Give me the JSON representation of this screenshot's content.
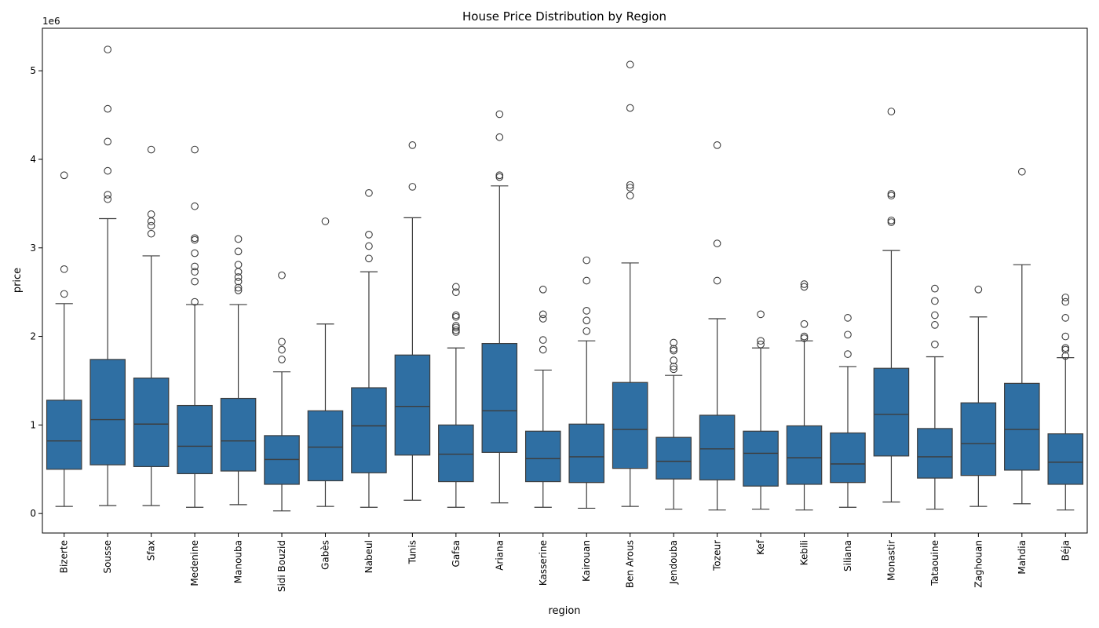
{
  "chart_data": {
    "type": "boxplot",
    "title": "House Price Distribution by Region",
    "xlabel": "region",
    "ylabel": "price",
    "y_scale_label": "1e6",
    "ylim": [
      -220000,
      5480000
    ],
    "yticks": [
      0,
      1000000,
      2000000,
      3000000,
      4000000,
      5000000
    ],
    "ytick_labels": [
      "0",
      "1",
      "2",
      "3",
      "4",
      "5"
    ],
    "grid": false,
    "box_color": "#2f6fa3",
    "line_color": "#3d3d3d",
    "series": [
      {
        "region": "Bizerte",
        "whisker_low": 80000,
        "q1": 500000,
        "median": 820000,
        "q3": 1280000,
        "whisker_high": 2370000,
        "outliers": [
          2480000,
          2760000,
          3820000
        ]
      },
      {
        "region": "Sousse",
        "whisker_low": 90000,
        "q1": 550000,
        "median": 1060000,
        "q3": 1740000,
        "whisker_high": 3330000,
        "outliers": [
          3550000,
          3600000,
          3870000,
          4200000,
          4570000,
          5240000
        ]
      },
      {
        "region": "Sfax",
        "whisker_low": 90000,
        "q1": 530000,
        "median": 1010000,
        "q3": 1530000,
        "whisker_high": 2910000,
        "outliers": [
          3160000,
          3250000,
          3300000,
          3380000,
          4110000
        ]
      },
      {
        "region": "Medenine",
        "whisker_low": 70000,
        "q1": 450000,
        "median": 760000,
        "q3": 1220000,
        "whisker_high": 2360000,
        "outliers": [
          2390000,
          2620000,
          2730000,
          2790000,
          2940000,
          3090000,
          3110000,
          3470000,
          4110000
        ]
      },
      {
        "region": "Manouba",
        "whisker_low": 100000,
        "q1": 480000,
        "median": 820000,
        "q3": 1300000,
        "whisker_high": 2360000,
        "outliers": [
          2520000,
          2550000,
          2620000,
          2670000,
          2730000,
          2810000,
          2960000,
          3100000
        ]
      },
      {
        "region": "Sidi Bouzid",
        "whisker_low": 30000,
        "q1": 330000,
        "median": 610000,
        "q3": 880000,
        "whisker_high": 1600000,
        "outliers": [
          1740000,
          1850000,
          1940000,
          2690000
        ]
      },
      {
        "region": "Gabès",
        "whisker_low": 80000,
        "q1": 370000,
        "median": 750000,
        "q3": 1160000,
        "whisker_high": 2140000,
        "outliers": [
          3300000
        ]
      },
      {
        "region": "Nabeul",
        "whisker_low": 70000,
        "q1": 460000,
        "median": 990000,
        "q3": 1420000,
        "whisker_high": 2730000,
        "outliers": [
          2880000,
          3020000,
          3150000,
          3620000
        ]
      },
      {
        "region": "Tunis",
        "whisker_low": 150000,
        "q1": 660000,
        "median": 1210000,
        "q3": 1790000,
        "whisker_high": 3340000,
        "outliers": [
          3690000,
          4160000
        ]
      },
      {
        "region": "Gafsa",
        "whisker_low": 70000,
        "q1": 360000,
        "median": 670000,
        "q3": 1000000,
        "whisker_high": 1870000,
        "outliers": [
          2050000,
          2070000,
          2100000,
          2120000,
          2220000,
          2240000,
          2500000,
          2560000
        ]
      },
      {
        "region": "Ariana",
        "whisker_low": 120000,
        "q1": 690000,
        "median": 1160000,
        "q3": 1920000,
        "whisker_high": 3700000,
        "outliers": [
          3800000,
          3820000,
          4250000,
          4510000
        ]
      },
      {
        "region": "Kasserine",
        "whisker_low": 70000,
        "q1": 360000,
        "median": 620000,
        "q3": 930000,
        "whisker_high": 1620000,
        "outliers": [
          1850000,
          1960000,
          2200000,
          2250000,
          2530000
        ]
      },
      {
        "region": "Kairouan",
        "whisker_low": 60000,
        "q1": 350000,
        "median": 640000,
        "q3": 1010000,
        "whisker_high": 1950000,
        "outliers": [
          2060000,
          2180000,
          2290000,
          2630000,
          2860000
        ]
      },
      {
        "region": "Ben Arous",
        "whisker_low": 80000,
        "q1": 510000,
        "median": 950000,
        "q3": 1480000,
        "whisker_high": 2830000,
        "outliers": [
          3590000,
          3680000,
          3710000,
          4580000,
          5070000
        ]
      },
      {
        "region": "Jendouba",
        "whisker_low": 50000,
        "q1": 390000,
        "median": 590000,
        "q3": 860000,
        "whisker_high": 1560000,
        "outliers": [
          1630000,
          1660000,
          1730000,
          1840000,
          1860000,
          1930000
        ]
      },
      {
        "region": "Tozeur",
        "whisker_low": 40000,
        "q1": 380000,
        "median": 730000,
        "q3": 1110000,
        "whisker_high": 2200000,
        "outliers": [
          2630000,
          3050000,
          4160000
        ]
      },
      {
        "region": "Kef",
        "whisker_low": 50000,
        "q1": 310000,
        "median": 680000,
        "q3": 930000,
        "whisker_high": 1870000,
        "outliers": [
          1910000,
          1950000,
          2250000
        ]
      },
      {
        "region": "Kebili",
        "whisker_low": 40000,
        "q1": 330000,
        "median": 630000,
        "q3": 990000,
        "whisker_high": 1950000,
        "outliers": [
          1980000,
          2000000,
          2140000,
          2560000,
          2590000
        ]
      },
      {
        "region": "Siliana",
        "whisker_low": 70000,
        "q1": 350000,
        "median": 560000,
        "q3": 910000,
        "whisker_high": 1660000,
        "outliers": [
          1800000,
          2020000,
          2210000
        ]
      },
      {
        "region": "Monastir",
        "whisker_low": 130000,
        "q1": 650000,
        "median": 1120000,
        "q3": 1640000,
        "whisker_high": 2970000,
        "outliers": [
          3290000,
          3310000,
          3590000,
          3610000,
          4540000
        ]
      },
      {
        "region": "Tataouine",
        "whisker_low": 50000,
        "q1": 400000,
        "median": 640000,
        "q3": 960000,
        "whisker_high": 1770000,
        "outliers": [
          1910000,
          2130000,
          2240000,
          2400000,
          2540000
        ]
      },
      {
        "region": "Zaghouan",
        "whisker_low": 80000,
        "q1": 430000,
        "median": 790000,
        "q3": 1250000,
        "whisker_high": 2220000,
        "outliers": [
          2530000
        ]
      },
      {
        "region": "Mahdia",
        "whisker_low": 110000,
        "q1": 490000,
        "median": 950000,
        "q3": 1470000,
        "whisker_high": 2810000,
        "outliers": [
          3860000
        ]
      },
      {
        "region": "Béja",
        "whisker_low": 40000,
        "q1": 330000,
        "median": 580000,
        "q3": 900000,
        "whisker_high": 1760000,
        "outliers": [
          1780000,
          1850000,
          1870000,
          2000000,
          2210000,
          2390000,
          2440000
        ]
      }
    ]
  }
}
